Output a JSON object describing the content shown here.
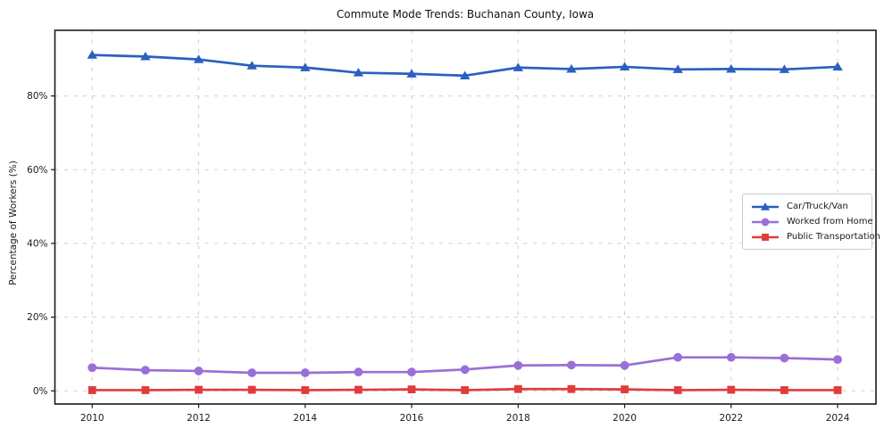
{
  "title": "Commute Mode Trends: Buchanan County, Iowa",
  "chart_data": {
    "type": "line",
    "title": "Commute Mode Trends: Buchanan County, Iowa",
    "xlabel": "",
    "ylabel": "Percentage of Workers (%)",
    "x": [
      2010,
      2011,
      2012,
      2013,
      2014,
      2015,
      2016,
      2017,
      2018,
      2019,
      2020,
      2021,
      2022,
      2023,
      2024
    ],
    "series": [
      {
        "name": "Car/Truck/Van",
        "color": "#2b5fc0",
        "marker": "triangle",
        "values": [
          91.1,
          90.7,
          89.9,
          88.2,
          87.7,
          86.3,
          86.0,
          85.5,
          87.7,
          87.3,
          87.9,
          87.2,
          87.3,
          87.2,
          87.9
        ]
      },
      {
        "name": "Worked from Home",
        "color": "#9a6fd6",
        "marker": "circle",
        "values": [
          6.3,
          5.6,
          5.4,
          4.9,
          4.9,
          5.1,
          5.1,
          5.8,
          6.9,
          7.0,
          6.9,
          9.1,
          9.1,
          8.9,
          8.5
        ]
      },
      {
        "name": "Public Transportation",
        "color": "#e13c3c",
        "marker": "square",
        "values": [
          0.2,
          0.2,
          0.3,
          0.3,
          0.2,
          0.3,
          0.4,
          0.2,
          0.5,
          0.5,
          0.4,
          0.2,
          0.3,
          0.2,
          0.2
        ]
      }
    ],
    "xticks": [
      2010,
      2012,
      2014,
      2016,
      2018,
      2020,
      2022,
      2024
    ],
    "yticks": [
      0,
      20,
      40,
      60,
      80
    ],
    "ytick_suffix": "%",
    "xlim": [
      2009.3,
      2024.72
    ],
    "ylim": [
      -3.56,
      97.8
    ],
    "grid": true,
    "grid_color": "#cfcfcf",
    "frame_color": "#1a1a1a",
    "text_color": "#1a1a1a",
    "legend_position": "center-right"
  }
}
